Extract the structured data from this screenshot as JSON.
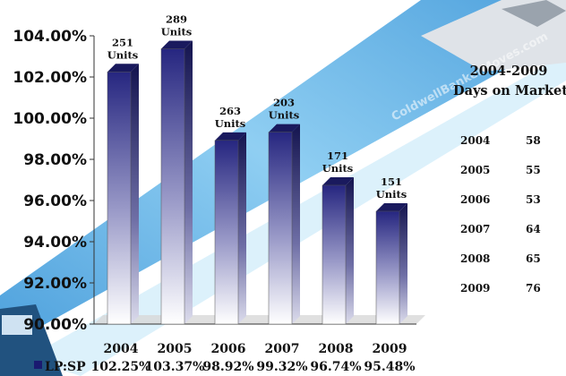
{
  "chart_data": {
    "type": "bar",
    "categories": [
      "2004",
      "2005",
      "2006",
      "2007",
      "2008",
      "2009"
    ],
    "series": [
      {
        "name": "LP:SP",
        "values": [
          102.25,
          103.37,
          98.92,
          99.32,
          96.74,
          95.48
        ]
      }
    ],
    "value_labels": [
      "102.25%",
      "103.37%",
      "98.92%",
      "99.32%",
      "96.74%",
      "95.48%"
    ],
    "unit_counts": [
      "251",
      "289",
      "263",
      "203",
      "171",
      "151"
    ],
    "unit_word": "Units",
    "y_ticks": [
      "104.00%",
      "102.00%",
      "100.00%",
      "98.00%",
      "96.00%",
      "94.00%",
      "92.00%",
      "90.00%"
    ],
    "ylim": [
      90,
      104
    ],
    "grid": false,
    "legend_position": "bottom-left"
  },
  "days_table": {
    "title_line1": "2004-2009",
    "title_line2": "Days on Market",
    "rows": [
      {
        "year": "2004",
        "days": "58"
      },
      {
        "year": "2005",
        "days": "55"
      },
      {
        "year": "2006",
        "days": "53"
      },
      {
        "year": "2007",
        "days": "64"
      },
      {
        "year": "2008",
        "days": "65"
      },
      {
        "year": "2009",
        "days": "76"
      }
    ]
  },
  "watermark": "ColdwellBankerMoves.com",
  "colors": {
    "bar_top": "#2b2b86",
    "bar_bottom": "#ffffff",
    "band": "#4aa3dc",
    "legend_swatch": "#1a1a70"
  }
}
